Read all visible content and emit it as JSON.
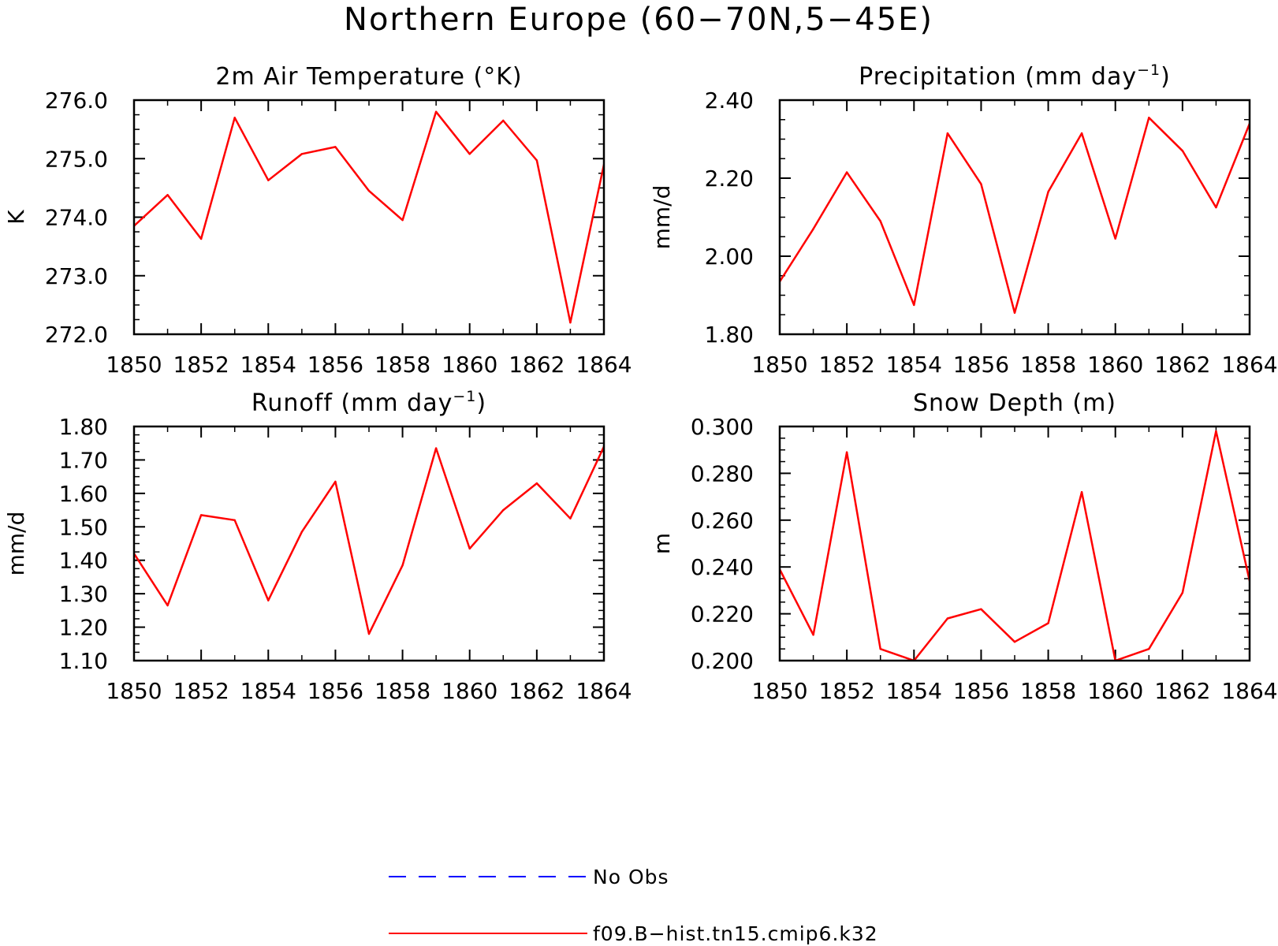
{
  "title": "Northern Europe (60−70N,5−45E)",
  "legend": [
    {
      "label": "No Obs",
      "color": "#0000ff",
      "style": "dashed"
    },
    {
      "label": "f09.B−hist.tn15.cmip6.k32",
      "color": "#ff0000",
      "style": "solid"
    }
  ],
  "chart_data": [
    {
      "type": "line",
      "title": "2m Air Temperature (°K)",
      "title_sup": "",
      "title_tail": "",
      "ylabel": "K",
      "xlabel": "",
      "xlim": [
        1850,
        1864
      ],
      "ylim": [
        272.0,
        276.0
      ],
      "xticks": [
        1850,
        1852,
        1854,
        1856,
        1858,
        1860,
        1862,
        1864
      ],
      "yticks": [
        272.0,
        273.0,
        274.0,
        275.0,
        276.0
      ],
      "ytick_labels": [
        "272.0",
        "273.0",
        "274.0",
        "275.0",
        "276.0"
      ],
      "series": [
        {
          "color": "#ff0000",
          "x": [
            1850,
            1851,
            1852,
            1853,
            1854,
            1855,
            1856,
            1857,
            1858,
            1859,
            1860,
            1861,
            1862,
            1863,
            1864
          ],
          "y": [
            273.85,
            274.38,
            273.63,
            275.7,
            274.63,
            275.08,
            275.2,
            274.45,
            273.95,
            275.8,
            275.08,
            275.65,
            274.97,
            272.2,
            274.9
          ]
        }
      ]
    },
    {
      "type": "line",
      "title": "Precipitation (mm day",
      "title_sup": "−1",
      "title_tail": ")",
      "ylabel": "mm/d",
      "xlabel": "",
      "xlim": [
        1850,
        1864
      ],
      "ylim": [
        1.8,
        2.4
      ],
      "xticks": [
        1850,
        1852,
        1854,
        1856,
        1858,
        1860,
        1862,
        1864
      ],
      "yticks": [
        1.8,
        2.0,
        2.2,
        2.4
      ],
      "ytick_labels": [
        "1.80",
        "2.00",
        "2.20",
        "2.40"
      ],
      "series": [
        {
          "color": "#ff0000",
          "x": [
            1850,
            1851,
            1852,
            1853,
            1854,
            1855,
            1856,
            1857,
            1858,
            1859,
            1860,
            1861,
            1862,
            1863,
            1864
          ],
          "y": [
            1.935,
            2.07,
            2.215,
            2.09,
            1.875,
            2.315,
            2.185,
            1.855,
            2.165,
            2.315,
            2.045,
            2.355,
            2.27,
            2.125,
            2.34
          ]
        }
      ]
    },
    {
      "type": "line",
      "title": "Runoff (mm day",
      "title_sup": "−1",
      "title_tail": ")",
      "ylabel": "mm/d",
      "xlabel": "",
      "xlim": [
        1850,
        1864
      ],
      "ylim": [
        1.1,
        1.8
      ],
      "xticks": [
        1850,
        1852,
        1854,
        1856,
        1858,
        1860,
        1862,
        1864
      ],
      "yticks": [
        1.1,
        1.2,
        1.3,
        1.4,
        1.5,
        1.6,
        1.7,
        1.8
      ],
      "ytick_labels": [
        "1.10",
        "1.20",
        "1.30",
        "1.40",
        "1.50",
        "1.60",
        "1.70",
        "1.80"
      ],
      "series": [
        {
          "color": "#ff0000",
          "x": [
            1850,
            1851,
            1852,
            1853,
            1854,
            1855,
            1856,
            1857,
            1858,
            1859,
            1860,
            1861,
            1862,
            1863,
            1864
          ],
          "y": [
            1.42,
            1.265,
            1.535,
            1.52,
            1.28,
            1.485,
            1.635,
            1.18,
            1.385,
            1.735,
            1.435,
            1.55,
            1.63,
            1.525,
            1.74
          ]
        }
      ]
    },
    {
      "type": "line",
      "title": "Snow Depth (m)",
      "title_sup": "",
      "title_tail": "",
      "ylabel": "m",
      "xlabel": "",
      "xlim": [
        1850,
        1864
      ],
      "ylim": [
        0.2,
        0.3
      ],
      "xticks": [
        1850,
        1852,
        1854,
        1856,
        1858,
        1860,
        1862,
        1864
      ],
      "yticks": [
        0.2,
        0.22,
        0.24,
        0.26,
        0.28,
        0.3
      ],
      "ytick_labels": [
        "0.200",
        "0.220",
        "0.240",
        "0.260",
        "0.280",
        "0.300"
      ],
      "series": [
        {
          "color": "#ff0000",
          "x": [
            1850,
            1851,
            1852,
            1853,
            1854,
            1855,
            1856,
            1857,
            1858,
            1859,
            1860,
            1861,
            1862,
            1863,
            1864
          ],
          "y": [
            0.239,
            0.211,
            0.289,
            0.205,
            0.2,
            0.218,
            0.222,
            0.208,
            0.216,
            0.272,
            0.2,
            0.205,
            0.229,
            0.298,
            0.234
          ]
        }
      ]
    }
  ]
}
